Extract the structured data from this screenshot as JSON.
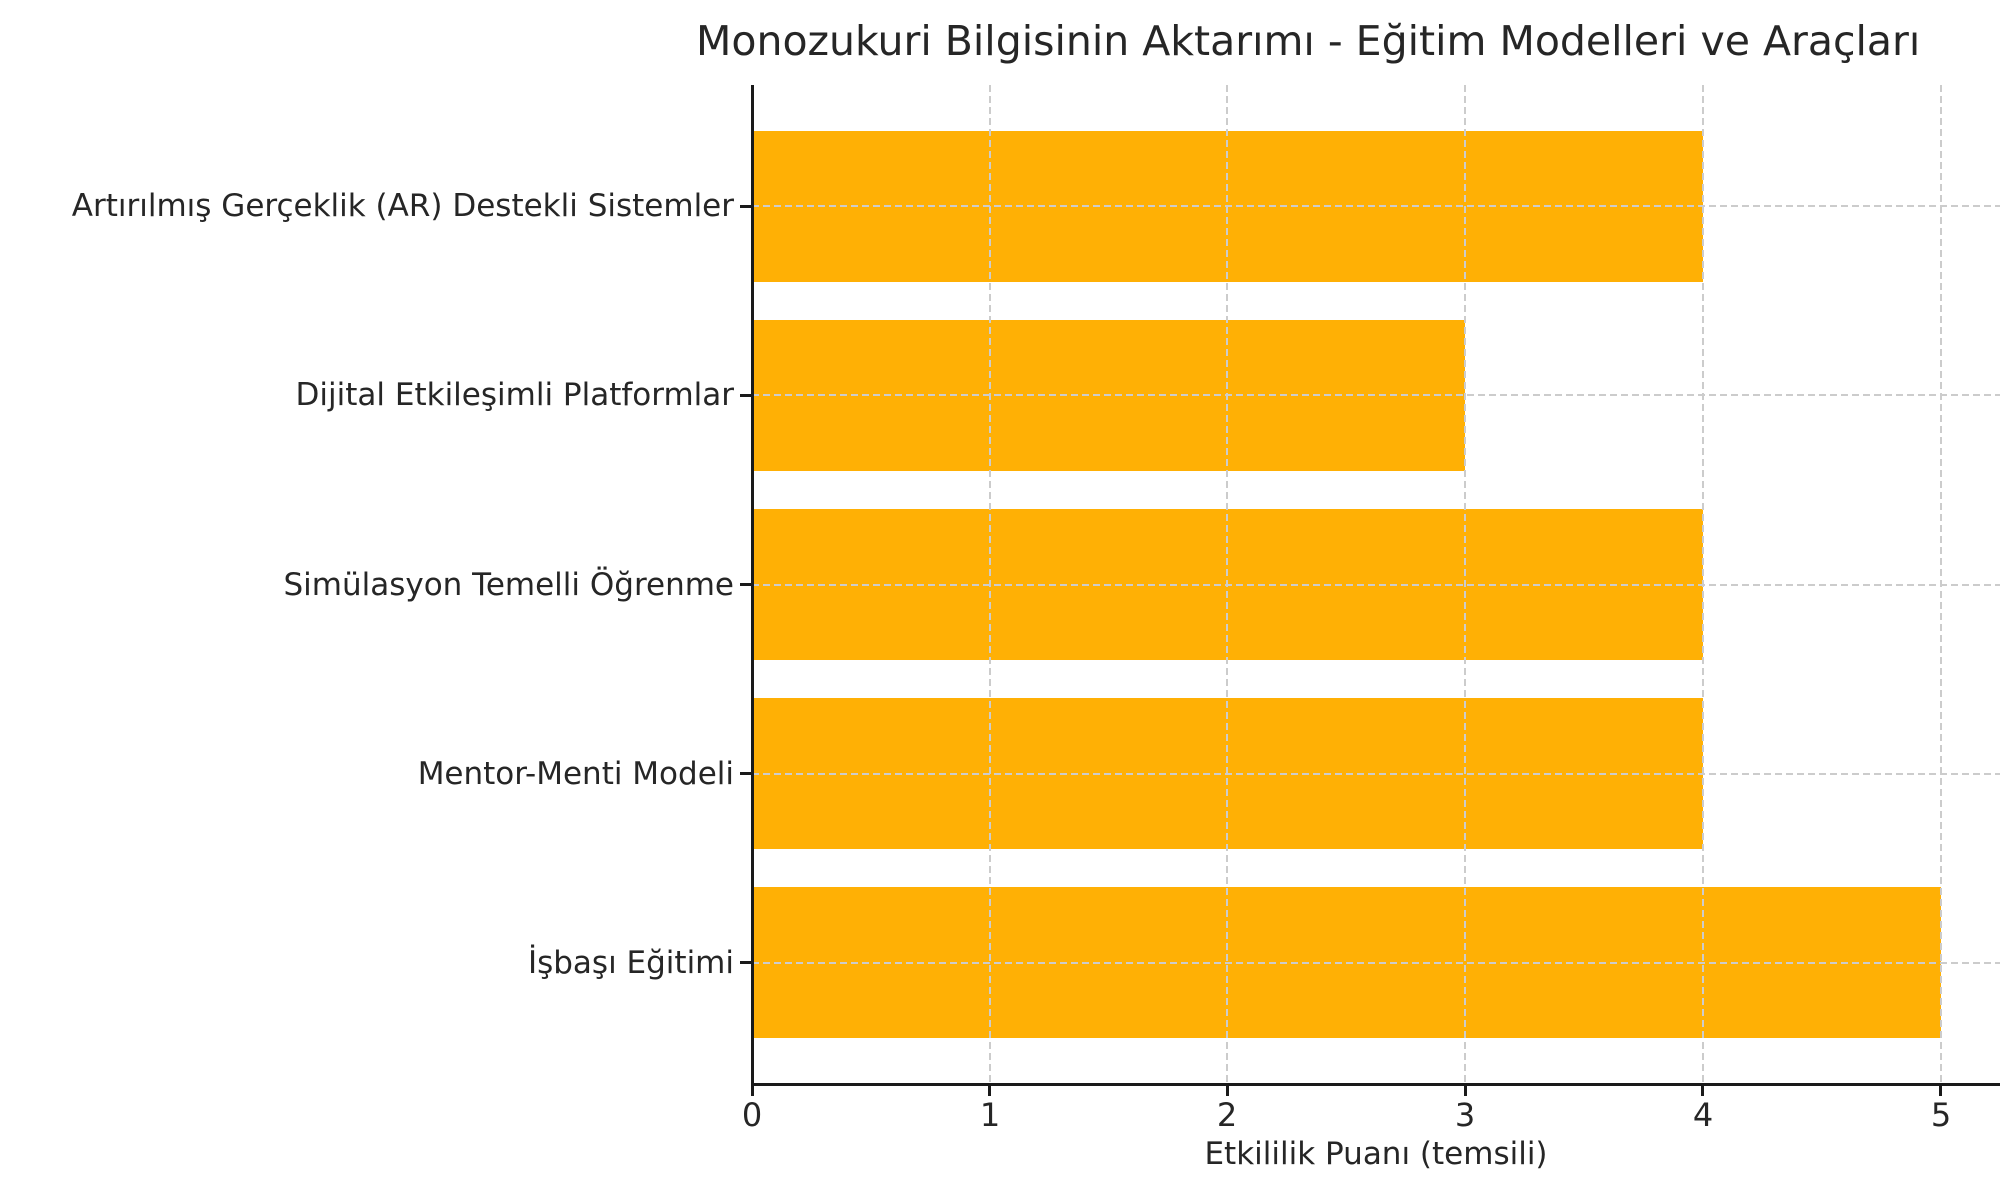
{
  "chart_data": {
    "type": "bar",
    "orientation": "horizontal",
    "title": "Monozukuri Bilgisinin Aktarımı - Eğitim Modelleri ve Araçları",
    "xlabel": "Etkililik Puanı (temsili)",
    "ylabel": "",
    "categories": [
      "Artırılmış Gerçeklik (AR) Destekli Sistemler",
      "Dijital Etkileşimli Platformlar",
      "Simülasyon Temelli Öğrenme",
      "Mentor-Menti Modeli",
      "İşbaşı Eğitimi"
    ],
    "values": [
      4,
      3,
      4,
      4,
      5
    ],
    "x_ticks": [
      "0",
      "1",
      "2",
      "3",
      "4",
      "5"
    ],
    "xlim": [
      0,
      5.25
    ],
    "grid": true,
    "grid_style": "dashed",
    "legend": false,
    "bar_color": "#FFB005",
    "grid_color": "#cccccc",
    "text_color": "#262626",
    "spine_color": "#1a1a1a"
  }
}
